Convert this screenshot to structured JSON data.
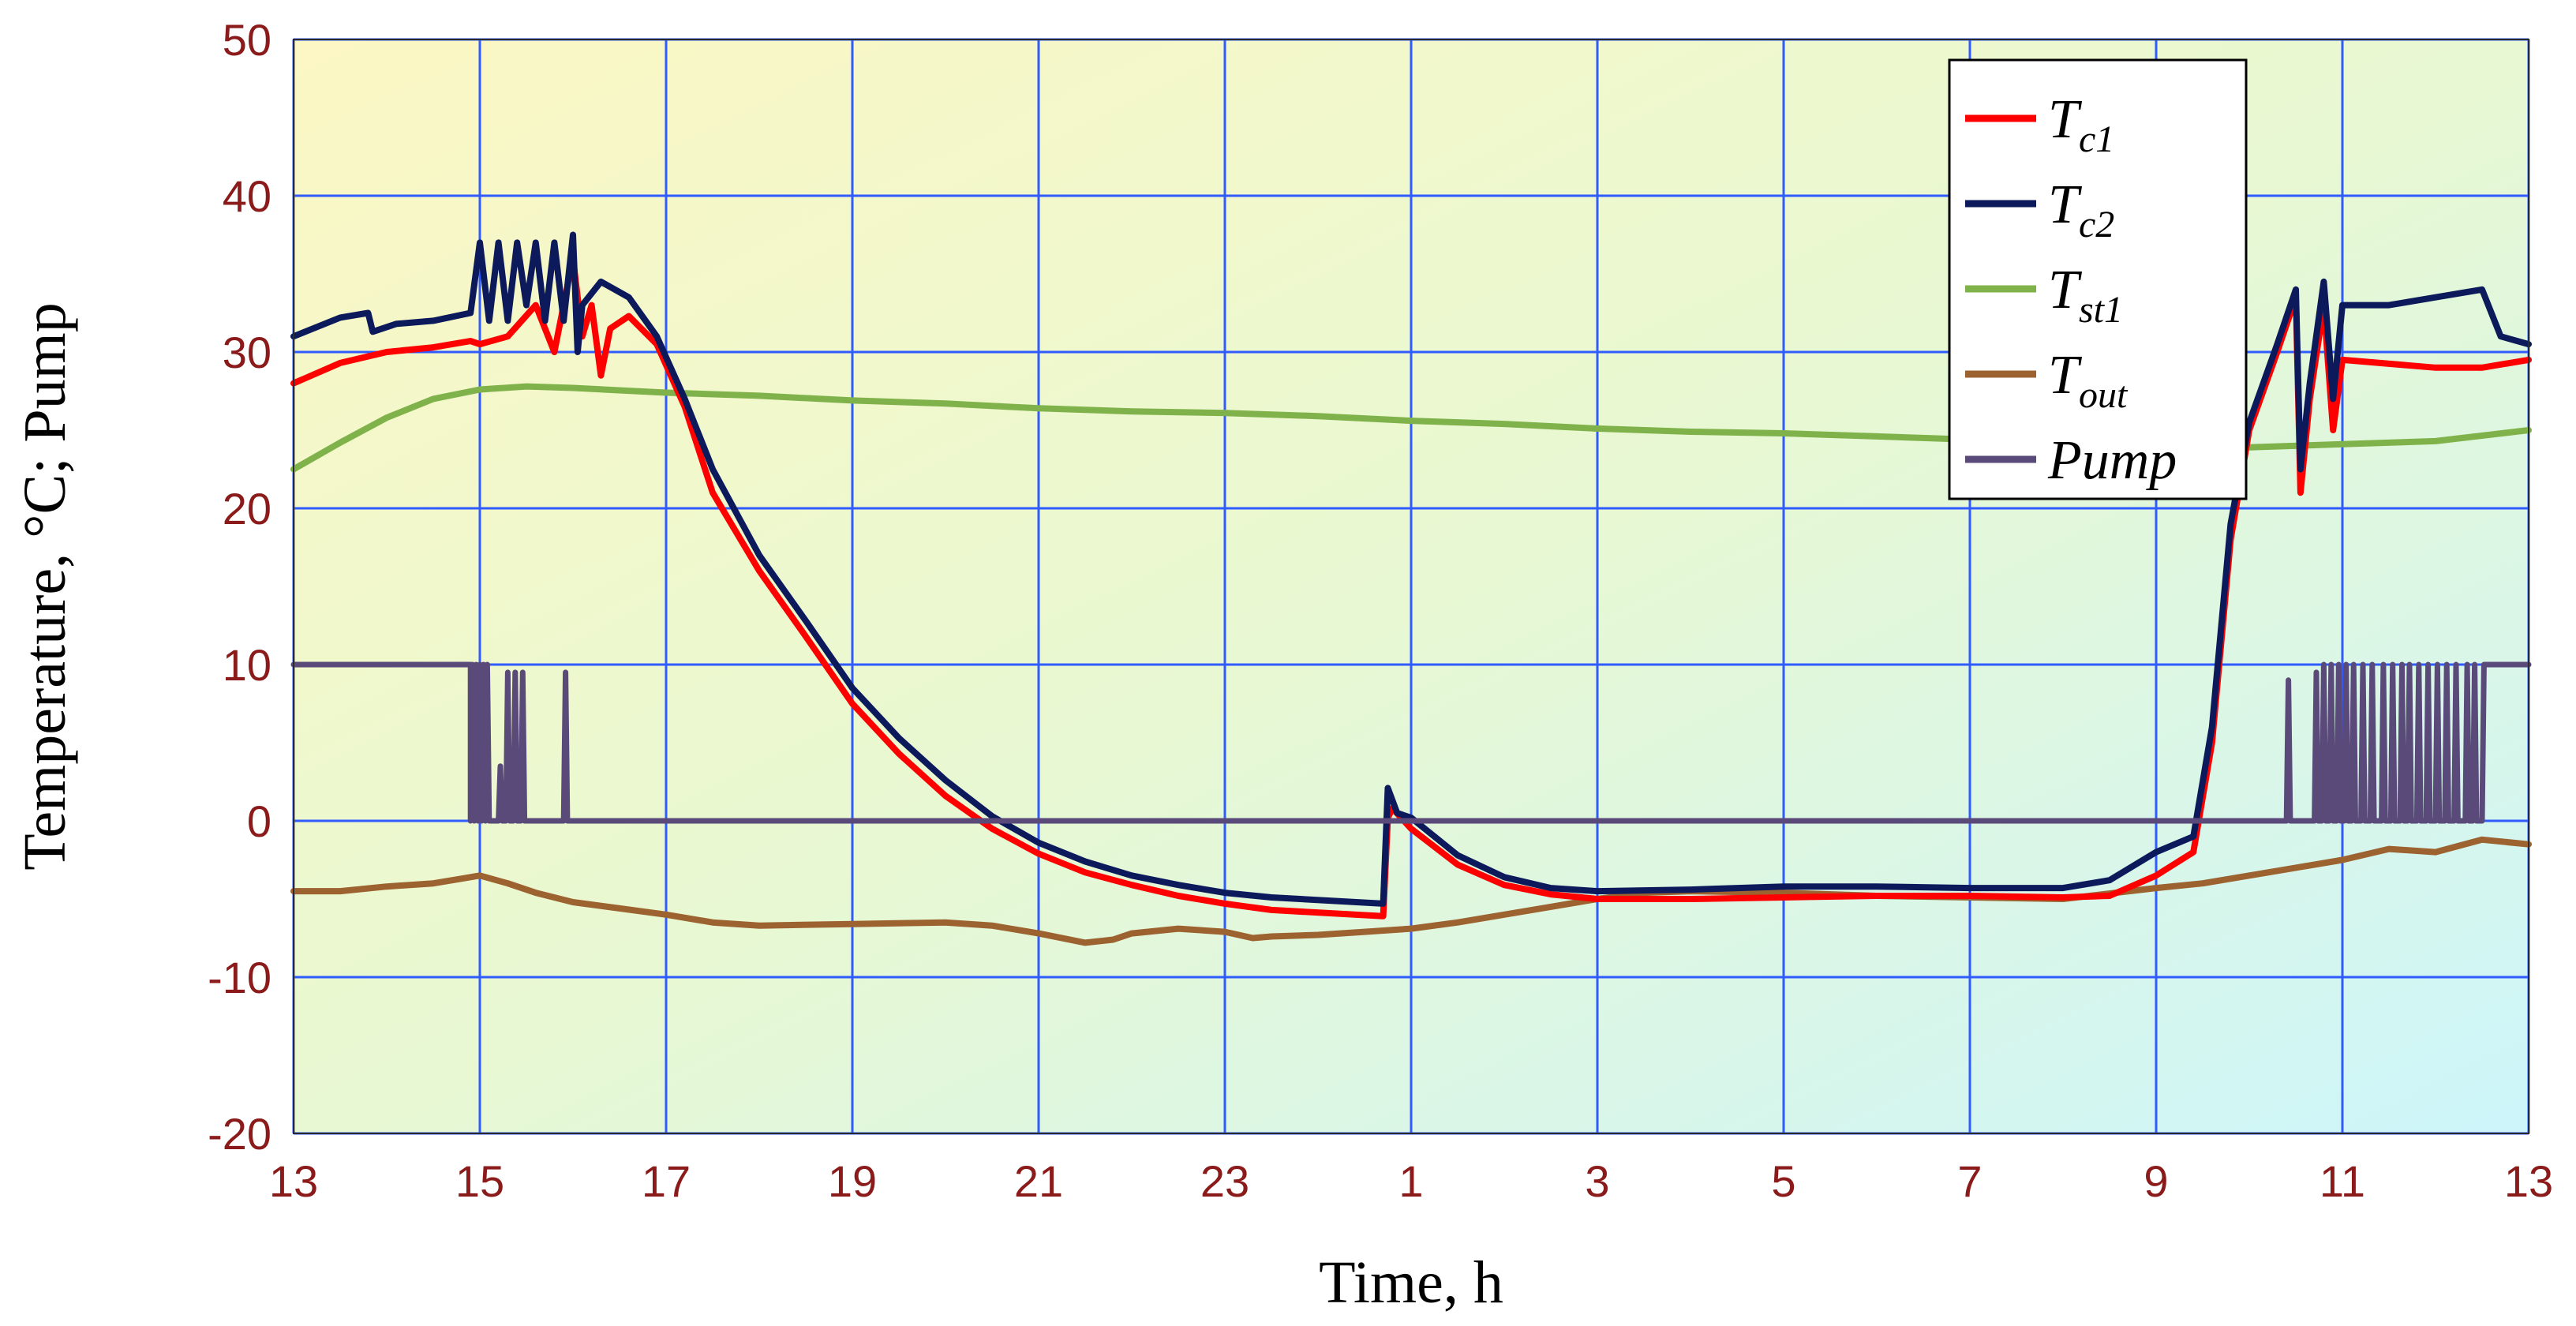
{
  "chart_data": {
    "type": "line",
    "xlabel": "Time, h",
    "ylabel": "Temperature, °C;   Pump",
    "x_tick_labels": [
      "13",
      "15",
      "17",
      "19",
      "21",
      "23",
      "1",
      "3",
      "5",
      "7",
      "9",
      "11",
      "13"
    ],
    "y_tick_labels": [
      "50",
      "40",
      "30",
      "20",
      "10",
      "0",
      "-10",
      "-20"
    ],
    "x_unit": "hours elapsed from 13:00",
    "xlim": [
      0,
      24
    ],
    "ylim": [
      -20,
      50
    ],
    "grid": true,
    "legend_position": "top-right",
    "series": [
      {
        "name": "Tc1",
        "legend_main": "T",
        "legend_sub": "c1",
        "color": "#ff0000",
        "points": [
          [
            0,
            28
          ],
          [
            0.5,
            29.3
          ],
          [
            1,
            30
          ],
          [
            1.5,
            30.3
          ],
          [
            1.9,
            30.7
          ],
          [
            2.0,
            30.5
          ],
          [
            2.3,
            31
          ],
          [
            2.6,
            33
          ],
          [
            2.8,
            30
          ],
          [
            3.0,
            36
          ],
          [
            3.1,
            31
          ],
          [
            3.2,
            33
          ],
          [
            3.3,
            28.5
          ],
          [
            3.4,
            31.5
          ],
          [
            3.6,
            32.3
          ],
          [
            3.9,
            30.5
          ],
          [
            4.2,
            26.5
          ],
          [
            4.5,
            21
          ],
          [
            5,
            16
          ],
          [
            5.5,
            11.8
          ],
          [
            6,
            7.5
          ],
          [
            6.5,
            4.3
          ],
          [
            7,
            1.6
          ],
          [
            7.5,
            -0.5
          ],
          [
            8,
            -2.1
          ],
          [
            8.5,
            -3.3
          ],
          [
            9,
            -4.1
          ],
          [
            9.5,
            -4.8
          ],
          [
            10,
            -5.3
          ],
          [
            10.5,
            -5.7
          ],
          [
            11.7,
            -6.1
          ],
          [
            11.75,
            0.2
          ],
          [
            11.8,
            0.8
          ],
          [
            12,
            -0.5
          ],
          [
            12.5,
            -2.8
          ],
          [
            13,
            -4.1
          ],
          [
            13.5,
            -4.7
          ],
          [
            14,
            -5
          ],
          [
            15,
            -5
          ],
          [
            16,
            -4.9
          ],
          [
            17,
            -4.8
          ],
          [
            18,
            -4.8
          ],
          [
            19,
            -4.9
          ],
          [
            19.5,
            -4.8
          ],
          [
            20,
            -3.5
          ],
          [
            20.4,
            -2
          ],
          [
            20.6,
            5
          ],
          [
            20.8,
            18
          ],
          [
            21,
            25
          ],
          [
            21.3,
            30
          ],
          [
            21.5,
            33.5
          ],
          [
            21.55,
            21
          ],
          [
            21.65,
            27
          ],
          [
            21.8,
            33
          ],
          [
            21.9,
            25
          ],
          [
            22,
            29.5
          ],
          [
            23,
            29
          ],
          [
            23.5,
            29
          ],
          [
            24,
            29.5
          ]
        ]
      },
      {
        "name": "Tc2",
        "legend_main": "T",
        "legend_sub": "c2",
        "color": "#0c1a5c",
        "points": [
          [
            0,
            31
          ],
          [
            0.5,
            32.2
          ],
          [
            0.8,
            32.5
          ],
          [
            0.85,
            31.3
          ],
          [
            1.1,
            31.8
          ],
          [
            1.5,
            32
          ],
          [
            1.9,
            32.5
          ],
          [
            2.0,
            37
          ],
          [
            2.1,
            32
          ],
          [
            2.2,
            37
          ],
          [
            2.3,
            32
          ],
          [
            2.4,
            37
          ],
          [
            2.5,
            33
          ],
          [
            2.6,
            37
          ],
          [
            2.7,
            32
          ],
          [
            2.8,
            37
          ],
          [
            2.9,
            32
          ],
          [
            3.0,
            37.5
          ],
          [
            3.05,
            30
          ],
          [
            3.1,
            33
          ],
          [
            3.3,
            34.5
          ],
          [
            3.6,
            33.5
          ],
          [
            3.9,
            31
          ],
          [
            4.2,
            27
          ],
          [
            4.5,
            22.5
          ],
          [
            5,
            17
          ],
          [
            5.5,
            12.8
          ],
          [
            6,
            8.5
          ],
          [
            6.5,
            5.3
          ],
          [
            7,
            2.6
          ],
          [
            7.5,
            0.3
          ],
          [
            8,
            -1.4
          ],
          [
            8.5,
            -2.6
          ],
          [
            9,
            -3.5
          ],
          [
            9.5,
            -4.1
          ],
          [
            10,
            -4.6
          ],
          [
            10.5,
            -4.9
          ],
          [
            11.7,
            -5.3
          ],
          [
            11.75,
            2.1
          ],
          [
            11.85,
            0.5
          ],
          [
            12,
            0.2
          ],
          [
            12.5,
            -2.2
          ],
          [
            13,
            -3.6
          ],
          [
            13.5,
            -4.3
          ],
          [
            14,
            -4.5
          ],
          [
            15,
            -4.4
          ],
          [
            16,
            -4.2
          ],
          [
            17,
            -4.2
          ],
          [
            18,
            -4.3
          ],
          [
            19,
            -4.3
          ],
          [
            19.5,
            -3.8
          ],
          [
            20,
            -2
          ],
          [
            20.4,
            -1
          ],
          [
            20.6,
            6
          ],
          [
            20.8,
            19
          ],
          [
            21,
            25.5
          ],
          [
            21.3,
            30.5
          ],
          [
            21.5,
            34
          ],
          [
            21.55,
            22.5
          ],
          [
            21.65,
            28
          ],
          [
            21.8,
            34.5
          ],
          [
            21.9,
            27
          ],
          [
            22,
            33
          ],
          [
            22.5,
            33
          ],
          [
            23,
            33.5
          ],
          [
            23.5,
            34
          ],
          [
            23.7,
            31
          ],
          [
            24,
            30.5
          ]
        ]
      },
      {
        "name": "Tst1",
        "legend_main": "T",
        "legend_sub": "st1",
        "color": "#7fb24a",
        "points": [
          [
            0,
            22.5
          ],
          [
            0.5,
            24.2
          ],
          [
            1,
            25.8
          ],
          [
            1.5,
            27
          ],
          [
            2,
            27.6
          ],
          [
            2.5,
            27.8
          ],
          [
            3,
            27.7
          ],
          [
            4,
            27.4
          ],
          [
            5,
            27.2
          ],
          [
            6,
            26.9
          ],
          [
            7,
            26.7
          ],
          [
            8,
            26.4
          ],
          [
            9,
            26.2
          ],
          [
            10,
            26.1
          ],
          [
            11,
            25.9
          ],
          [
            12,
            25.6
          ],
          [
            13,
            25.4
          ],
          [
            14,
            25.1
          ],
          [
            15,
            24.9
          ],
          [
            16,
            24.8
          ],
          [
            17,
            24.6
          ],
          [
            18,
            24.4
          ],
          [
            19,
            24.2
          ],
          [
            20,
            24.1
          ],
          [
            21,
            23.9
          ],
          [
            22,
            24.1
          ],
          [
            23,
            24.3
          ],
          [
            24,
            25
          ]
        ]
      },
      {
        "name": "Tout",
        "legend_main": "T",
        "legend_sub": "out",
        "color": "#9c6230",
        "points": [
          [
            0,
            -4.5
          ],
          [
            0.5,
            -4.5
          ],
          [
            1,
            -4.2
          ],
          [
            1.5,
            -4
          ],
          [
            1.8,
            -3.7
          ],
          [
            2,
            -3.5
          ],
          [
            2.3,
            -4
          ],
          [
            2.6,
            -4.6
          ],
          [
            3,
            -5.2
          ],
          [
            3.5,
            -5.6
          ],
          [
            4,
            -6
          ],
          [
            4.5,
            -6.5
          ],
          [
            5,
            -6.7
          ],
          [
            6,
            -6.6
          ],
          [
            7,
            -6.5
          ],
          [
            7.5,
            -6.7
          ],
          [
            8,
            -7.2
          ],
          [
            8.5,
            -7.8
          ],
          [
            8.8,
            -7.6
          ],
          [
            9,
            -7.2
          ],
          [
            9.5,
            -6.9
          ],
          [
            10,
            -7.1
          ],
          [
            10.3,
            -7.5
          ],
          [
            10.5,
            -7.4
          ],
          [
            11,
            -7.3
          ],
          [
            11.5,
            -7.1
          ],
          [
            12,
            -6.9
          ],
          [
            12.5,
            -6.5
          ],
          [
            13,
            -6
          ],
          [
            13.5,
            -5.5
          ],
          [
            14,
            -5
          ],
          [
            14.5,
            -4.6
          ],
          [
            15,
            -4.5
          ],
          [
            16,
            -4.6
          ],
          [
            17,
            -4.8
          ],
          [
            18,
            -4.9
          ],
          [
            19,
            -5
          ],
          [
            20,
            -4.3
          ],
          [
            20.5,
            -4
          ],
          [
            21,
            -3.5
          ],
          [
            21.5,
            -3
          ],
          [
            22,
            -2.5
          ],
          [
            22.5,
            -1.8
          ],
          [
            23,
            -2
          ],
          [
            23.5,
            -1.2
          ],
          [
            24,
            -1.5
          ]
        ]
      },
      {
        "name": "Pump",
        "legend_main": "Pump",
        "legend_sub": "",
        "color": "#5a4a7a",
        "points": [
          [
            0,
            10
          ],
          [
            1.9,
            10
          ],
          [
            1.9,
            0
          ],
          [
            1.92,
            10
          ],
          [
            1.94,
            0
          ],
          [
            1.96,
            10
          ],
          [
            1.98,
            0
          ],
          [
            2.0,
            10
          ],
          [
            2.02,
            0
          ],
          [
            2.04,
            10
          ],
          [
            2.06,
            0
          ],
          [
            2.08,
            10
          ],
          [
            2.1,
            0
          ],
          [
            2.2,
            0
          ],
          [
            2.22,
            3.5
          ],
          [
            2.24,
            0
          ],
          [
            2.28,
            0
          ],
          [
            2.3,
            9.5
          ],
          [
            2.32,
            0
          ],
          [
            2.36,
            0
          ],
          [
            2.38,
            9.5
          ],
          [
            2.4,
            0
          ],
          [
            2.44,
            0
          ],
          [
            2.46,
            9.5
          ],
          [
            2.48,
            0
          ],
          [
            2.9,
            0
          ],
          [
            2.92,
            9.5
          ],
          [
            2.94,
            0
          ],
          [
            21.4,
            0
          ],
          [
            21.42,
            9
          ],
          [
            21.44,
            0
          ],
          [
            21.7,
            0
          ],
          [
            21.72,
            9.5
          ],
          [
            21.74,
            0
          ],
          [
            21.78,
            0
          ],
          [
            21.8,
            10
          ],
          [
            21.82,
            0
          ],
          [
            21.86,
            0
          ],
          [
            21.88,
            10
          ],
          [
            21.9,
            0
          ],
          [
            21.94,
            0
          ],
          [
            21.96,
            10
          ],
          [
            21.98,
            0
          ],
          [
            22.02,
            0
          ],
          [
            22.04,
            10
          ],
          [
            22.06,
            0
          ],
          [
            22.1,
            0
          ],
          [
            22.12,
            10
          ],
          [
            22.14,
            0
          ],
          [
            22.2,
            0
          ],
          [
            22.22,
            10
          ],
          [
            22.24,
            0
          ],
          [
            22.3,
            0
          ],
          [
            22.32,
            10
          ],
          [
            22.34,
            0
          ],
          [
            22.42,
            0
          ],
          [
            22.44,
            10
          ],
          [
            22.46,
            0
          ],
          [
            22.52,
            0
          ],
          [
            22.54,
            10
          ],
          [
            22.56,
            0
          ],
          [
            22.62,
            0
          ],
          [
            22.64,
            10
          ],
          [
            22.66,
            0
          ],
          [
            22.7,
            0
          ],
          [
            22.72,
            10
          ],
          [
            22.74,
            0
          ],
          [
            22.8,
            0
          ],
          [
            22.82,
            10
          ],
          [
            22.84,
            0
          ],
          [
            22.9,
            0
          ],
          [
            22.92,
            10
          ],
          [
            22.94,
            0
          ],
          [
            23.0,
            0
          ],
          [
            23.02,
            10
          ],
          [
            23.04,
            0
          ],
          [
            23.1,
            0
          ],
          [
            23.12,
            10
          ],
          [
            23.14,
            0
          ],
          [
            23.2,
            0
          ],
          [
            23.22,
            10
          ],
          [
            23.24,
            0
          ],
          [
            23.32,
            0
          ],
          [
            23.34,
            10
          ],
          [
            23.36,
            0
          ],
          [
            23.4,
            0
          ],
          [
            23.42,
            10
          ],
          [
            23.44,
            0
          ],
          [
            23.5,
            0
          ],
          [
            23.52,
            10
          ],
          [
            24,
            10
          ]
        ]
      }
    ]
  }
}
